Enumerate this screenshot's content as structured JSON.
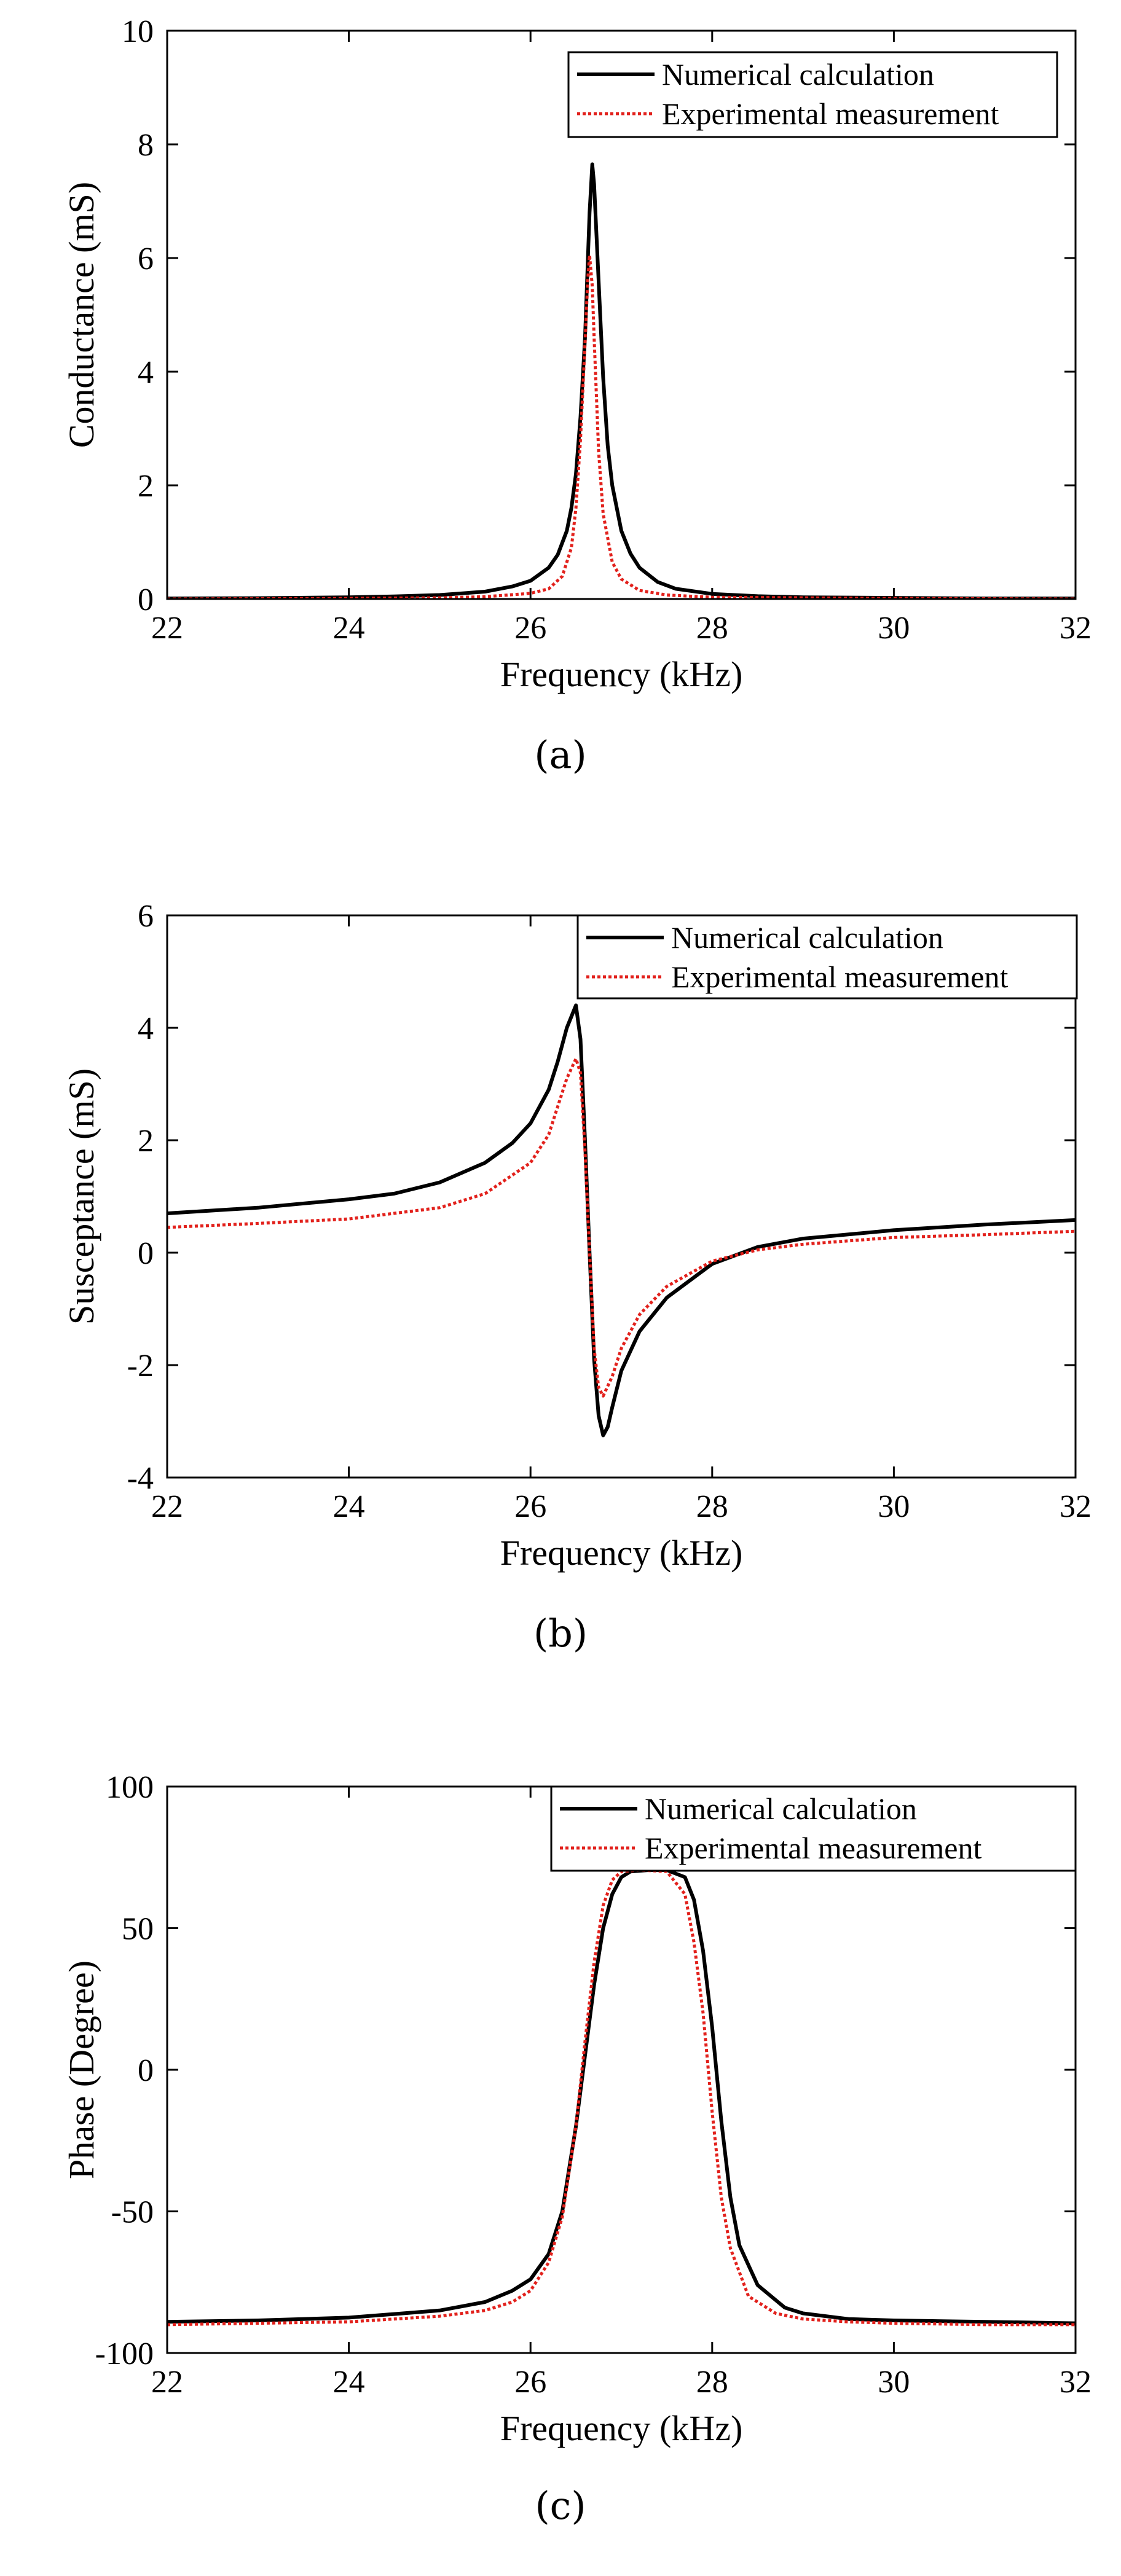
{
  "colors": {
    "numerical": "#000000",
    "experimental": "#e2211c"
  },
  "chart_data": [
    {
      "type": "line",
      "panel_label": "(a)",
      "xlabel": "Frequency (kHz)",
      "ylabel": "Conductance (mS)",
      "xlim": [
        22,
        32
      ],
      "ylim": [
        0,
        10
      ],
      "xticks": [
        22,
        24,
        26,
        28,
        30,
        32
      ],
      "yticks": [
        0,
        2,
        4,
        6,
        8,
        10
      ],
      "legend": {
        "position": "top-right",
        "entries": [
          "Numerical calculation",
          "Experimental measurement"
        ]
      },
      "series": [
        {
          "name": "Numerical calculation",
          "style": "solid",
          "x": [
            22.0,
            23.0,
            24.0,
            24.5,
            25.0,
            25.5,
            25.8,
            26.0,
            26.2,
            26.3,
            26.4,
            26.45,
            26.5,
            26.55,
            26.6,
            26.65,
            26.68,
            26.7,
            26.75,
            26.8,
            26.85,
            26.9,
            27.0,
            27.1,
            27.2,
            27.4,
            27.6,
            28.0,
            28.5,
            29.0,
            30.0,
            31.0,
            32.0
          ],
          "y": [
            0.01,
            0.015,
            0.03,
            0.045,
            0.07,
            0.13,
            0.22,
            0.32,
            0.55,
            0.78,
            1.2,
            1.6,
            2.2,
            3.2,
            4.6,
            6.8,
            7.65,
            7.3,
            5.6,
            3.9,
            2.7,
            2.0,
            1.2,
            0.8,
            0.55,
            0.3,
            0.18,
            0.09,
            0.05,
            0.03,
            0.02,
            0.01,
            0.01
          ]
        },
        {
          "name": "Experimental measurement",
          "style": "dotted",
          "x": [
            22.0,
            24.0,
            25.0,
            25.5,
            26.0,
            26.2,
            26.35,
            26.45,
            26.5,
            26.55,
            26.6,
            26.63,
            26.65,
            26.68,
            26.7,
            26.75,
            26.8,
            26.9,
            27.0,
            27.2,
            27.5,
            28.0,
            30.0,
            32.0
          ],
          "y": [
            0.0,
            0.01,
            0.02,
            0.04,
            0.1,
            0.18,
            0.4,
            0.9,
            1.6,
            2.8,
            4.5,
            5.6,
            6.05,
            5.5,
            4.6,
            2.6,
            1.5,
            0.65,
            0.35,
            0.15,
            0.07,
            0.03,
            0.01,
            0.0
          ]
        }
      ]
    },
    {
      "type": "line",
      "panel_label": "(b)",
      "xlabel": "Frequency (kHz)",
      "ylabel": "Susceptance (mS)",
      "xlim": [
        22,
        32
      ],
      "ylim": [
        -4,
        6
      ],
      "xticks": [
        22,
        24,
        26,
        28,
        30,
        32
      ],
      "yticks": [
        -4,
        -2,
        0,
        2,
        4,
        6
      ],
      "legend": {
        "position": "top-right",
        "entries": [
          "Numerical calculation",
          "Experimental measurement"
        ]
      },
      "series": [
        {
          "name": "Numerical calculation",
          "style": "solid",
          "x": [
            22.0,
            23.0,
            24.0,
            24.5,
            25.0,
            25.5,
            25.8,
            26.0,
            26.2,
            26.3,
            26.4,
            26.5,
            26.55,
            26.6,
            26.65,
            26.7,
            26.75,
            26.8,
            26.85,
            26.9,
            27.0,
            27.2,
            27.5,
            28.0,
            28.5,
            29.0,
            30.0,
            31.0,
            32.0
          ],
          "y": [
            0.7,
            0.8,
            0.95,
            1.05,
            1.25,
            1.6,
            1.95,
            2.3,
            2.9,
            3.4,
            4.0,
            4.4,
            3.8,
            2.0,
            0.0,
            -1.9,
            -2.9,
            -3.25,
            -3.1,
            -2.75,
            -2.1,
            -1.4,
            -0.8,
            -0.2,
            0.1,
            0.25,
            0.4,
            0.5,
            0.58
          ]
        },
        {
          "name": "Experimental measurement",
          "style": "dotted",
          "x": [
            22.0,
            23.0,
            24.0,
            25.0,
            25.5,
            26.0,
            26.2,
            26.3,
            26.4,
            26.5,
            26.55,
            26.6,
            26.65,
            26.7,
            26.75,
            26.8,
            26.9,
            27.0,
            27.2,
            27.5,
            28.0,
            28.5,
            29.0,
            30.0,
            31.0,
            32.0
          ],
          "y": [
            0.45,
            0.52,
            0.6,
            0.8,
            1.05,
            1.6,
            2.1,
            2.6,
            3.1,
            3.45,
            3.2,
            1.8,
            0.0,
            -1.7,
            -2.4,
            -2.55,
            -2.2,
            -1.7,
            -1.1,
            -0.6,
            -0.15,
            0.05,
            0.15,
            0.27,
            0.32,
            0.38
          ]
        }
      ]
    },
    {
      "type": "line",
      "panel_label": "(c)",
      "xlabel": "Frequency (kHz)",
      "ylabel": "Phase (Degree)",
      "xlim": [
        22,
        32
      ],
      "ylim": [
        -100,
        100
      ],
      "xticks": [
        22,
        24,
        26,
        28,
        30,
        32
      ],
      "yticks": [
        -100,
        -50,
        0,
        50,
        100
      ],
      "legend": {
        "position": "top-right",
        "entries": [
          "Numerical calculation",
          "Experimental measurement"
        ]
      },
      "series": [
        {
          "name": "Numerical calculation",
          "style": "solid",
          "x": [
            22.0,
            23.0,
            24.0,
            25.0,
            25.5,
            25.8,
            26.0,
            26.2,
            26.35,
            26.5,
            26.6,
            26.7,
            26.8,
            26.9,
            27.0,
            27.1,
            27.3,
            27.5,
            27.7,
            27.8,
            27.9,
            28.0,
            28.1,
            28.2,
            28.3,
            28.5,
            28.8,
            29.0,
            29.5,
            30.0,
            31.0,
            32.0
          ],
          "y": [
            -89,
            -88.5,
            -87.5,
            -85,
            -82,
            -78,
            -74,
            -65,
            -50,
            -20,
            5,
            30,
            50,
            62,
            68,
            70,
            70.5,
            70.5,
            68,
            60,
            42,
            15,
            -18,
            -45,
            -62,
            -76,
            -84,
            -86,
            -88,
            -88.5,
            -89,
            -89.5
          ]
        },
        {
          "name": "Experimental measurement",
          "style": "dotted",
          "x": [
            22.0,
            23.0,
            24.0,
            25.0,
            25.5,
            25.8,
            26.0,
            26.2,
            26.35,
            26.5,
            26.6,
            26.7,
            26.8,
            26.9,
            27.0,
            27.2,
            27.5,
            27.7,
            27.8,
            27.9,
            28.0,
            28.1,
            28.2,
            28.4,
            28.7,
            29.0,
            29.5,
            30.0,
            31.0,
            32.0
          ],
          "y": [
            -90,
            -89.5,
            -89,
            -87,
            -85,
            -82,
            -78,
            -68,
            -52,
            -20,
            10,
            38,
            58,
            67,
            70,
            70.5,
            70,
            62,
            45,
            20,
            -15,
            -45,
            -63,
            -80,
            -86,
            -88,
            -89,
            -89.5,
            -90,
            -90
          ]
        }
      ]
    }
  ]
}
